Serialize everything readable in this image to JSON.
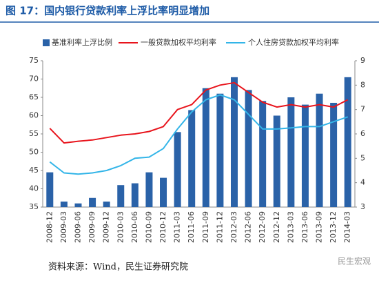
{
  "chart_data": {
    "type": "bar",
    "title": "图 17：国内银行贷款利率上浮比率明显增加",
    "source": "资料来源：Wind，民生证券研究院",
    "watermark": "民生宏观",
    "categories": [
      "2008-12",
      "2009-03",
      "2009-06",
      "2009-09",
      "2009-12",
      "2010-03",
      "2010-06",
      "2010-09",
      "2010-12",
      "2011-03",
      "2011-06",
      "2011-09",
      "2011-12",
      "2012-03",
      "2012-06",
      "2012-09",
      "2012-12",
      "2013-03",
      "2013-06",
      "2013-09",
      "2013-12",
      "2014-03"
    ],
    "series": [
      {
        "name": "基准利率上浮比例",
        "color": "#2a62a8",
        "type": "bar",
        "values": [
          44.5,
          36.5,
          36,
          37.5,
          36.5,
          41,
          41.5,
          44.5,
          43,
          55.5,
          61.5,
          67.5,
          66,
          70.5,
          67,
          64,
          60,
          65,
          63,
          66,
          63.5,
          70.5
        ]
      },
      {
        "name": "一般贷款加权平均利率",
        "color": "#e8141c",
        "type": "line",
        "axis": "y2",
        "values": [
          6.23,
          5.63,
          5.7,
          5.75,
          5.85,
          5.95,
          6.0,
          6.1,
          6.3,
          7.0,
          7.2,
          7.8,
          8.0,
          8.1,
          7.7,
          7.3,
          7.1,
          7.2,
          7.1,
          7.2,
          7.1,
          7.4
        ]
      },
      {
        "name": "个人住房贷款加权平均利率",
        "color": "#33b5e8",
        "type": "line",
        "axis": "y2",
        "values": [
          4.85,
          4.4,
          4.35,
          4.4,
          4.5,
          4.7,
          5.0,
          5.05,
          5.4,
          6.2,
          6.9,
          7.4,
          7.6,
          7.4,
          6.8,
          6.2,
          6.2,
          6.25,
          6.3,
          6.3,
          6.5,
          6.7
        ]
      }
    ],
    "ylim": [
      35,
      75
    ],
    "yticks": [
      35,
      40,
      45,
      50,
      55,
      60,
      65,
      70,
      75
    ],
    "y2lim": [
      3,
      9
    ],
    "y2ticks": [
      3,
      4,
      5,
      6,
      7,
      8,
      9
    ]
  }
}
